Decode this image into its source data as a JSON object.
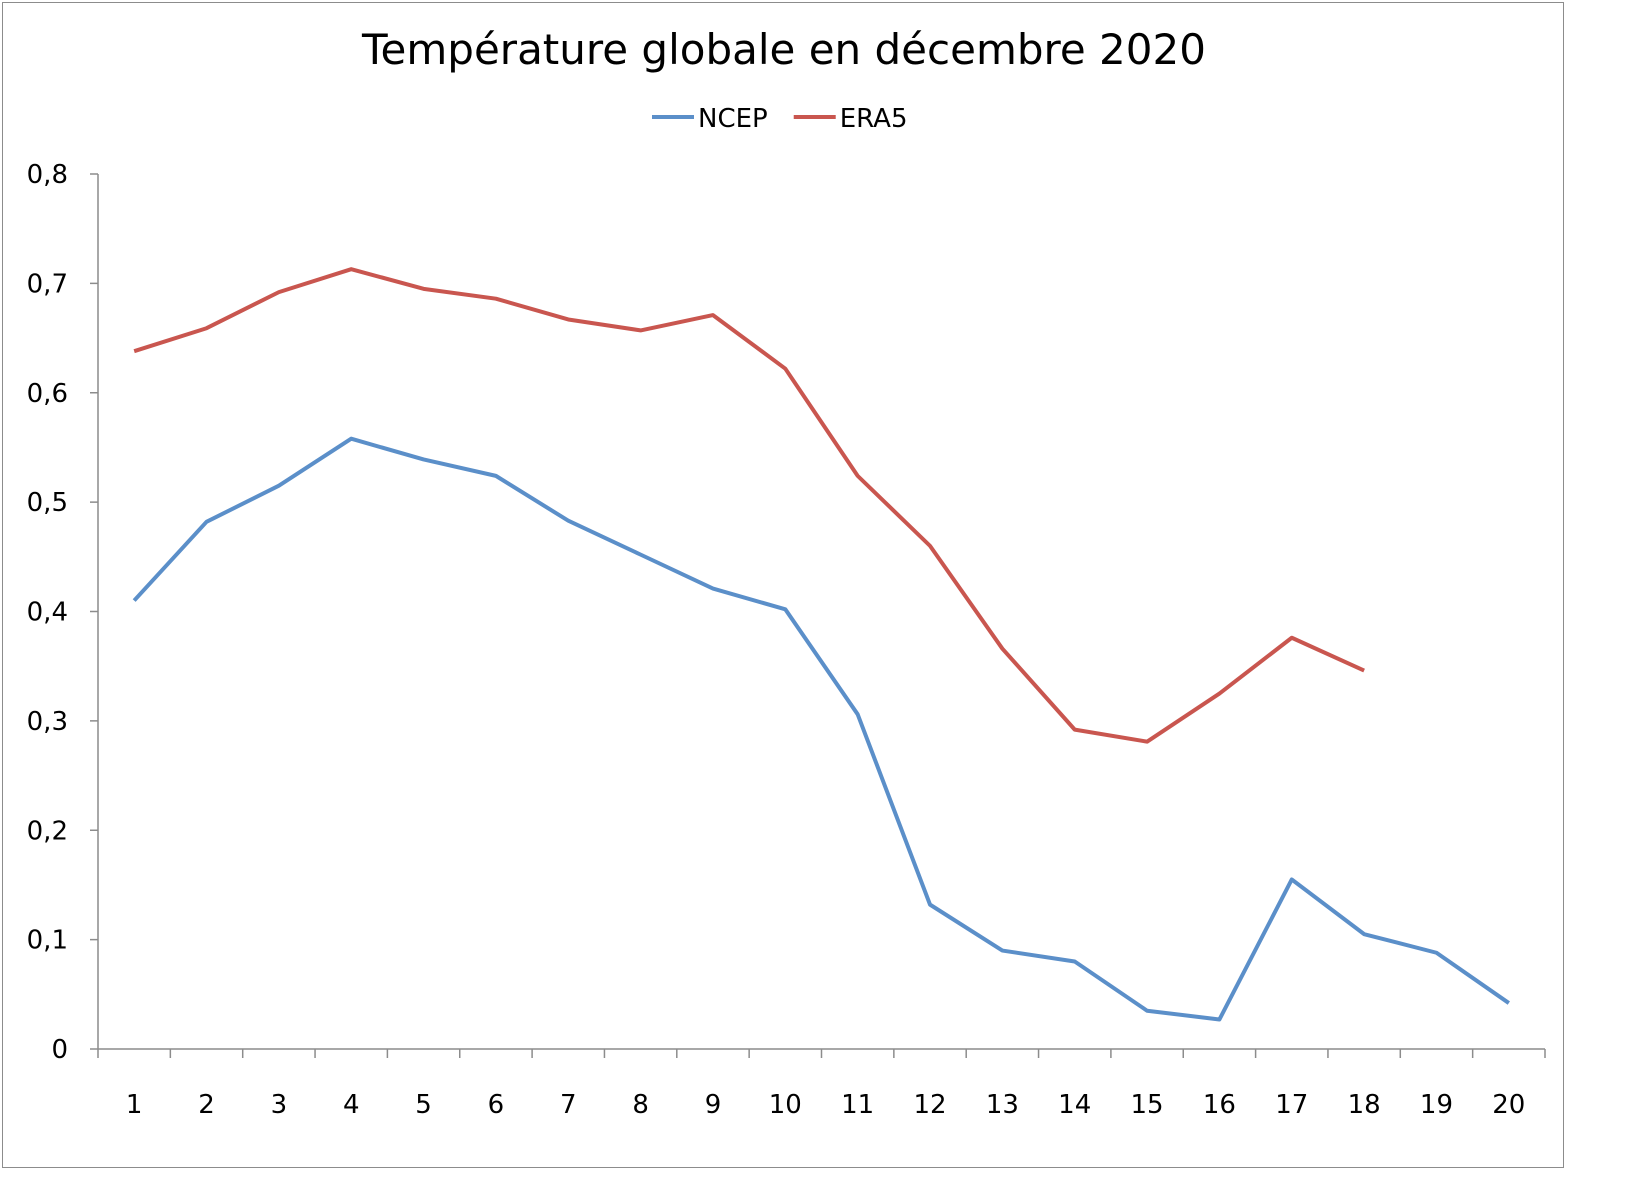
{
  "chart_data": {
    "type": "line",
    "title": "Température globale en décembre 2020",
    "xlabel": "",
    "ylabel": "",
    "categories": [
      "1",
      "2",
      "3",
      "4",
      "5",
      "6",
      "7",
      "8",
      "9",
      "10",
      "11",
      "12",
      "13",
      "14",
      "15",
      "16",
      "17",
      "18",
      "19",
      "20"
    ],
    "y_tick_labels": [
      "0",
      "0,1",
      "0,2",
      "0,3",
      "0,4",
      "0,5",
      "0,6",
      "0,7",
      "0,8"
    ],
    "ylim": [
      0,
      0.8
    ],
    "grid": false,
    "legend_position": "top",
    "series": [
      {
        "name": "NCEP",
        "color": "#5b8fc9",
        "values": [
          0.41,
          0.482,
          0.515,
          0.558,
          0.539,
          0.524,
          0.483,
          0.452,
          0.421,
          0.402,
          0.306,
          0.132,
          0.09,
          0.08,
          0.035,
          0.027,
          0.155,
          0.105,
          0.088,
          0.042
        ]
      },
      {
        "name": "ERA5",
        "color": "#c9564f",
        "values": [
          0.638,
          0.659,
          0.692,
          0.713,
          0.695,
          0.686,
          0.667,
          0.657,
          0.671,
          0.622,
          0.524,
          0.46,
          0.366,
          0.292,
          0.281,
          0.325,
          0.376,
          0.346,
          null,
          null
        ]
      }
    ]
  }
}
